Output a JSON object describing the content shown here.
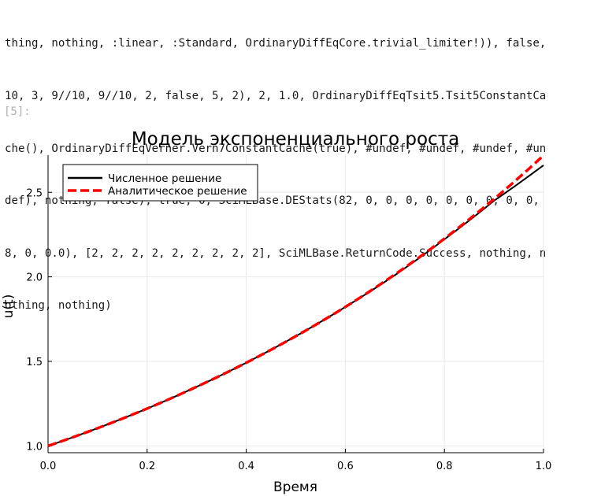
{
  "output": {
    "lines": [
      "thing, nothing, :linear, :Standard, OrdinaryDiffEqCore.trivial_limiter!)), false,",
      "10, 3, 9//10, 9//10, 2, false, 5, 2), 2, 1.0, OrdinaryDiffEqTsit5.Tsit5ConstantCa",
      "che(), OrdinaryDiffEqVerner.Vern7ConstantCache(true), #undef, #undef, #undef, #un",
      "def), nothing, false), true, 0, SciMLBase.DEStats(82, 0, 0, 0, 0, 0, 0, 0, 0, 0,",
      "8, 0, 0.0), [2, 2, 2, 2, 2, 2, 2, 2, 2], SciMLBase.ReturnCode.Success, nothing, n",
      "othing, nothing)"
    ]
  },
  "cell": {
    "prompt": "[5]:"
  },
  "chart_data": {
    "type": "line",
    "title": "Модель экспоненциального роста",
    "xlabel": "Время",
    "ylabel": "u(t)",
    "xlim": [
      0.0,
      1.0
    ],
    "ylim": [
      0.96,
      2.72
    ],
    "xticks": [
      0.0,
      0.2,
      0.4,
      0.6,
      0.8,
      1.0
    ],
    "xtick_labels": [
      "0.0",
      "0.2",
      "0.4",
      "0.6",
      "0.8",
      "1.0"
    ],
    "yticks": [
      1.0,
      1.5,
      2.0,
      2.5
    ],
    "ytick_labels": [
      "1.0",
      "1.5",
      "2.0",
      "2.5"
    ],
    "grid": true,
    "legend_position": "top-left",
    "series": [
      {
        "name": "Численное решение",
        "color": "#000000",
        "style": "solid",
        "x": [
          0.0,
          0.1,
          0.2,
          0.3,
          0.4,
          0.5,
          0.6,
          0.7,
          0.8,
          0.9,
          1.0
        ],
        "values": [
          1.0,
          1.105,
          1.221,
          1.35,
          1.492,
          1.649,
          1.822,
          2.01,
          2.222,
          2.45,
          2.66
        ]
      },
      {
        "name": "Аналитическое решение",
        "color": "#ff0000",
        "style": "dashed",
        "x": [
          0.0,
          0.1,
          0.2,
          0.3,
          0.4,
          0.5,
          0.6,
          0.7,
          0.8,
          0.9,
          1.0
        ],
        "values": [
          1.0,
          1.105,
          1.221,
          1.35,
          1.492,
          1.649,
          1.822,
          2.014,
          2.226,
          2.46,
          2.718
        ]
      }
    ]
  }
}
